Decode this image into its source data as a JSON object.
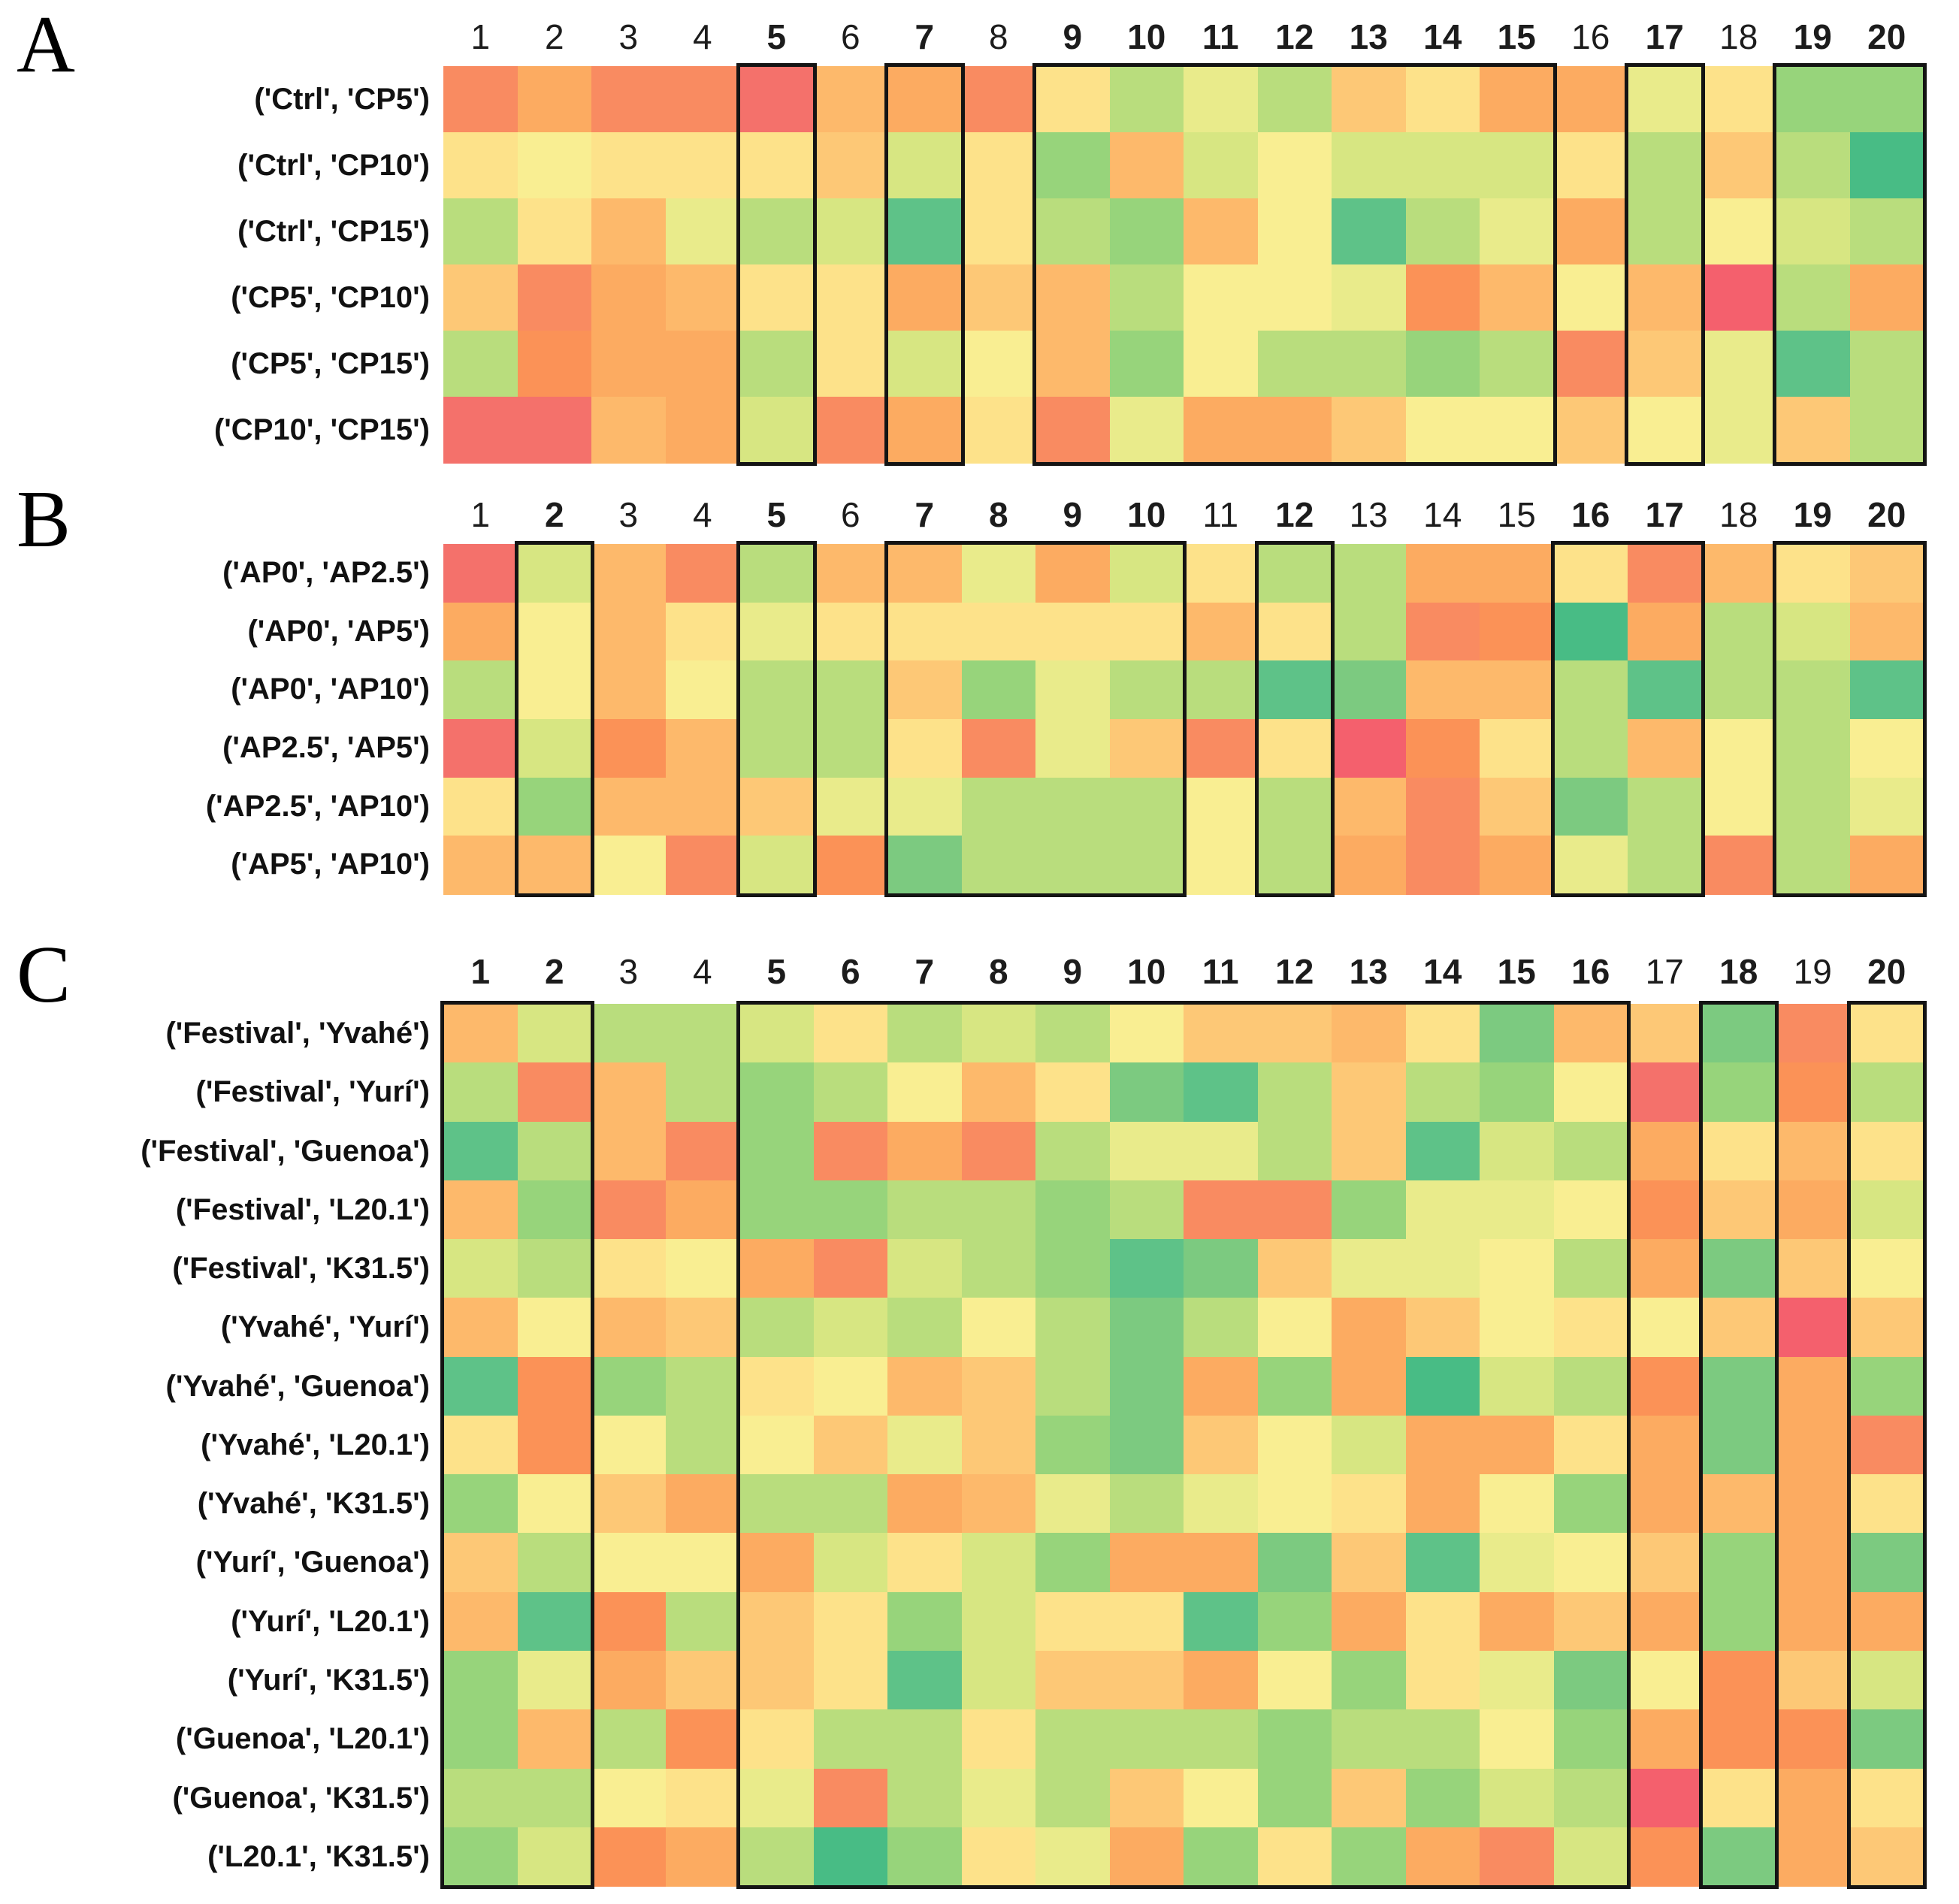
{
  "palette": {
    "r": "#f4606d",
    "R": "#f4716b",
    "s": "#f98b61",
    "S": "#fb9257",
    "o": "#fcab61",
    "O": "#fdb96b",
    "c": "#fdc876",
    "y": "#fde28a",
    "p": "#f9ee92",
    "q": "#e9eb8b",
    "v": "#d7e682",
    "l": "#b9dd7d",
    "g": "#97d47b",
    "m": "#7cca80",
    "t": "#5ec288",
    "T": "#48bc85"
  },
  "palette_legend": {
    "r": "strong red",
    "R": "red salmon",
    "s": "salmon",
    "S": "salmon orange",
    "o": "orange",
    "O": "light orange",
    "c": "orange yellow",
    "y": "yellow",
    "p": "pale yellow",
    "q": "pale yellow green",
    "v": "yellow green",
    "l": "light green",
    "g": "green",
    "m": "medium green",
    "t": "teal green",
    "T": "strong teal green"
  },
  "chart_data": [
    {
      "title": "A",
      "type": "heatmap",
      "x_labels": [
        "1",
        "2",
        "3",
        "4",
        "5",
        "6",
        "7",
        "8",
        "9",
        "10",
        "11",
        "12",
        "13",
        "14",
        "15",
        "16",
        "17",
        "18",
        "19",
        "20"
      ],
      "bold_x_labels": [
        5,
        7,
        9,
        10,
        11,
        12,
        13,
        14,
        15,
        17,
        19,
        20
      ],
      "highlight_boxes": [
        [
          5,
          5
        ],
        [
          7,
          7
        ],
        [
          9,
          15
        ],
        [
          17,
          17
        ],
        [
          19,
          20
        ]
      ],
      "y_labels": [
        "('Ctrl', 'CP5')",
        "('Ctrl', 'CP10')",
        "('Ctrl', 'CP15')",
        "('CP5', 'CP10')",
        "('CP5', 'CP15')",
        "('CP10', 'CP15')"
      ],
      "rows": [
        "sossROosylqlcyooqygg",
        "ypyyycvygOvpvvvylclT",
        "lyOqlvtylgOptlqolpvl",
        "csoOyyocOlppqSOpOrlo",
        "lSoolyvpOgpllglscqtl",
        "RROovsoysqoocppcpqcl"
      ],
      "values_note": "cell colors encode comparison outcome on a red-yellow-green scale; single-character codes map to hex colors in palette"
    },
    {
      "title": "B",
      "type": "heatmap",
      "x_labels": [
        "1",
        "2",
        "3",
        "4",
        "5",
        "6",
        "7",
        "8",
        "9",
        "10",
        "11",
        "12",
        "13",
        "14",
        "15",
        "16",
        "17",
        "18",
        "19",
        "20"
      ],
      "bold_x_labels": [
        2,
        5,
        7,
        8,
        9,
        10,
        12,
        16,
        17,
        19,
        20
      ],
      "highlight_boxes": [
        [
          2,
          2
        ],
        [
          5,
          5
        ],
        [
          7,
          10
        ],
        [
          12,
          12
        ],
        [
          16,
          17
        ],
        [
          19,
          20
        ]
      ],
      "y_labels": [
        "('AP0', 'AP2.5')",
        "('AP0', 'AP5')",
        "('AP0', 'AP10')",
        "('AP2.5', 'AP5')",
        "('AP2.5', 'AP10')",
        "('AP5', 'AP10')"
      ],
      "rows": [
        "RvOslOOqovyllooysOyc",
        "opOyqyyyyyOylsSTolvO",
        "lpOpllcgqlltmOOltllt",
        "RvSOllysqcsyrSylOplp",
        "ygOOcqqlllplOscmlplq",
        "OOpsvSmlllplosoqlslo"
      ],
      "values_note": "cell colors encode comparison outcome on a red-yellow-green scale; single-character codes map to hex colors in palette"
    },
    {
      "title": "C",
      "type": "heatmap",
      "x_labels": [
        "1",
        "2",
        "3",
        "4",
        "5",
        "6",
        "7",
        "8",
        "9",
        "10",
        "11",
        "12",
        "13",
        "14",
        "15",
        "16",
        "17",
        "18",
        "19",
        "20"
      ],
      "bold_x_labels": [
        1,
        2,
        5,
        6,
        7,
        8,
        9,
        10,
        11,
        12,
        13,
        14,
        15,
        16,
        18,
        20
      ],
      "highlight_boxes": [
        [
          1,
          2
        ],
        [
          5,
          16
        ],
        [
          18,
          18
        ],
        [
          20,
          20
        ]
      ],
      "y_labels": [
        "('Festival', 'Yvahé')",
        "('Festival', 'Yurí')",
        "('Festival', 'Guenoa')",
        "('Festival', 'L20.1')",
        "('Festival', 'K31.5')",
        "('Yvahé', 'Yurí')",
        "('Yvahé', 'Guenoa')",
        "('Yvahé', 'L20.1')",
        "('Yvahé', 'K31.5')",
        "('Yurí', 'Guenoa')",
        "('Yurí', 'L20.1')",
        "('Yurí', 'K31.5')",
        "('Guenoa', 'L20.1')",
        "('Guenoa', 'K31.5')",
        "('L20.1', 'K31.5')"
      ],
      "rows": [
        "OvllvylvlpccOymOcmsy",
        "lsOlglpOymtlclgpRgSl",
        "tlOsgsoslqqlctvloyOy",
        "OgsoggllglssgqqpScov",
        "vlyposvlgtmcqqplomcp",
        "OpOclvlplmlpocpypcrc",
        "tSglypOclmogoTvlSmog",
        "ySplpcqcgmcpvooyomos",
        "gpcolloOqlqpyopgoOoy",
        "clppovyvgoomctqpcgom",
        "OtSlcygvyytgoyocogoo",
        "gqoccytvccopgyqmpScv",
        "gOlSyllylllgllpgoSSm",
        "llpyqslqlcpgcgvlryoy",
        "gvSolTgyqogygosvSmoc"
      ],
      "values_note": "cell colors encode comparison outcome on a red-yellow-green scale; single-character codes map to hex colors in palette"
    }
  ]
}
